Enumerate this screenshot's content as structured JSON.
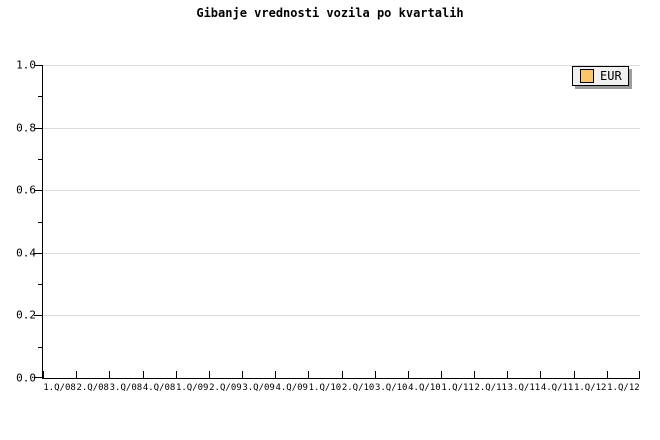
{
  "title": "Gibanje vrednosti vozila po kvartalih",
  "legend": {
    "position": "top-right",
    "items": [
      {
        "label": "EUR",
        "swatch_color": "#fbc56b"
      }
    ]
  },
  "colors": {
    "background": "#ffffff",
    "grid": "#dcdcdc",
    "axis": "#000000",
    "text": "#000000",
    "legend_bg": "#f0f0f0",
    "legend_shadow": "#9c9c9c"
  },
  "chart_data": {
    "type": "line",
    "title": "Gibanje vrednosti vozila po kvartalih",
    "xlabel": "",
    "ylabel": "",
    "x_tick_labels": [
      "1.Q/08",
      "2.Q/08",
      "3.Q/08",
      "4.Q/08",
      "1.Q/09",
      "2.Q/09",
      "3.Q/09",
      "4.Q/09",
      "1.Q/10",
      "2.Q/10",
      "3.Q/10",
      "4.Q/10",
      "1.Q/11",
      "2.Q/11",
      "3.Q/11",
      "4.Q/11",
      "1.Q/12",
      "1.Q/12"
    ],
    "y_tick_labels": [
      "0.0",
      "0.2",
      "0.4",
      "0.6",
      "0.8",
      "1.0"
    ],
    "y_minor_ticks": [
      0.1,
      0.3,
      0.5,
      0.7,
      0.9
    ],
    "ylim": [
      0.0,
      1.0
    ],
    "grid": "horizontal-major",
    "legend_position": "top-right",
    "series": [
      {
        "name": "EUR",
        "color": "#fbc56b",
        "values": []
      }
    ]
  }
}
